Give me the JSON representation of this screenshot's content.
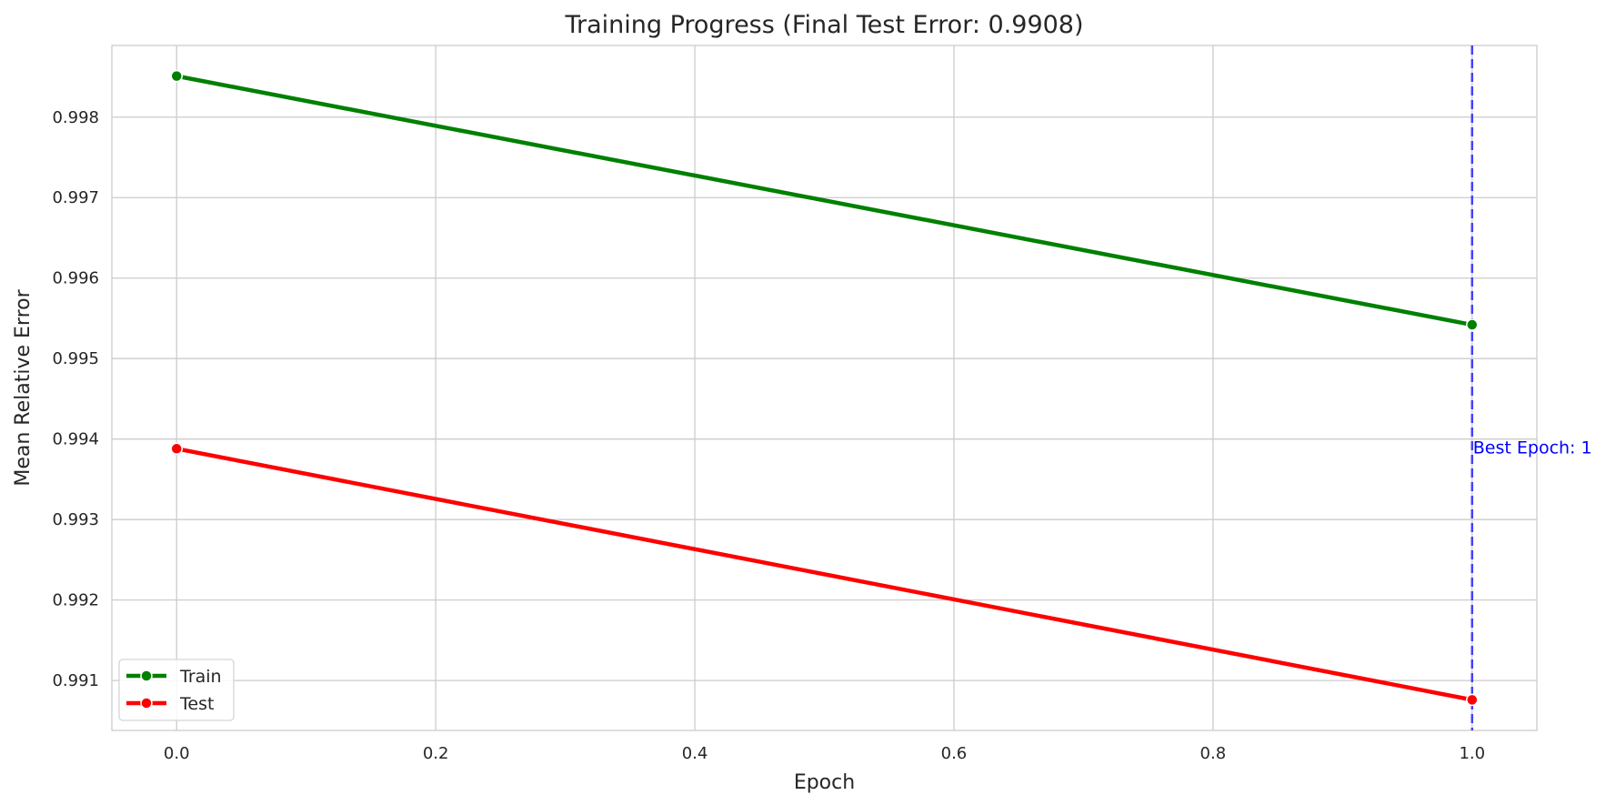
{
  "chart_data": {
    "type": "line",
    "title": "Training Progress (Final Test Error: 0.9908)",
    "xlabel": "Epoch",
    "ylabel": "Mean Relative Error",
    "xlim": [
      -0.05,
      1.05
    ],
    "ylim": [
      0.99038,
      0.99889
    ],
    "x_ticks": [
      0.0,
      0.2,
      0.4,
      0.6,
      0.8,
      1.0
    ],
    "x_tick_labels": [
      "0.0",
      "0.2",
      "0.4",
      "0.6",
      "0.8",
      "1.0"
    ],
    "y_ticks": [
      0.991,
      0.992,
      0.993,
      0.994,
      0.995,
      0.996,
      0.997,
      0.998
    ],
    "y_tick_labels": [
      "0.991",
      "0.992",
      "0.993",
      "0.994",
      "0.995",
      "0.996",
      "0.997",
      "0.998"
    ],
    "grid": true,
    "legend_position": "bottom-left",
    "series": [
      {
        "name": "Train",
        "color": "#008000",
        "x": [
          0,
          1
        ],
        "y": [
          0.99851,
          0.99542
        ]
      },
      {
        "name": "Test",
        "color": "#ff0000",
        "x": [
          0,
          1
        ],
        "y": [
          0.99388,
          0.99076
        ]
      }
    ],
    "reference_line": {
      "orientation": "vertical",
      "x": 1,
      "color": "#3333ff",
      "style": "dashed"
    },
    "annotations": [
      {
        "text": "Best Epoch: 1",
        "x": 1,
        "y": 0.9939,
        "color": "#0000ff"
      }
    ]
  }
}
